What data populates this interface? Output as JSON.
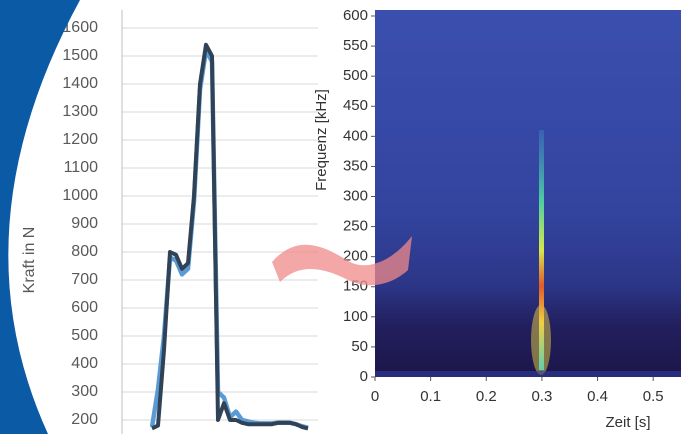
{
  "chart_data": [
    {
      "type": "line",
      "y_label": "Kraft in N",
      "categories": [
        null,
        null,
        null,
        null,
        null,
        null,
        null,
        null,
        null,
        null,
        null,
        null,
        null,
        null,
        null,
        null,
        null,
        null,
        null,
        null,
        null,
        null,
        null,
        null,
        null,
        null,
        null
      ],
      "series": [
        {
          "color": "#5b9bd5",
          "values": [
            175,
            310,
            500,
            780,
            770,
            720,
            740,
            980,
            1380,
            1520,
            1480,
            300,
            280,
            210,
            230,
            200,
            195,
            190,
            188,
            188,
            188,
            190,
            190,
            190,
            185,
            178,
            172
          ]
        },
        {
          "color": "#2f4256",
          "values": [
            170,
            180,
            450,
            800,
            790,
            740,
            760,
            1000,
            1400,
            1540,
            1500,
            200,
            260,
            200,
            200,
            190,
            185,
            185,
            185,
            185,
            185,
            190,
            190,
            190,
            185,
            175,
            170
          ]
        }
      ],
      "ylim": [
        150,
        1700
      ],
      "yticks": [
        200,
        300,
        400,
        500,
        600,
        700,
        800,
        900,
        1000,
        1100,
        1200,
        1300,
        1400,
        1500,
        1600
      ],
      "grid": true
    },
    {
      "type": "spectrogram",
      "x_label": "Zeit [s]",
      "y_label": "Frequenz [kHz]",
      "xlim": [
        0,
        0.55
      ],
      "ylim": [
        0,
        600
      ],
      "xticks": [
        0,
        0.1,
        0.2,
        0.3,
        0.4,
        0.5
      ],
      "yticks": [
        0,
        50,
        100,
        150,
        200,
        250,
        300,
        350,
        400,
        450,
        500,
        550,
        600
      ]
    }
  ]
}
